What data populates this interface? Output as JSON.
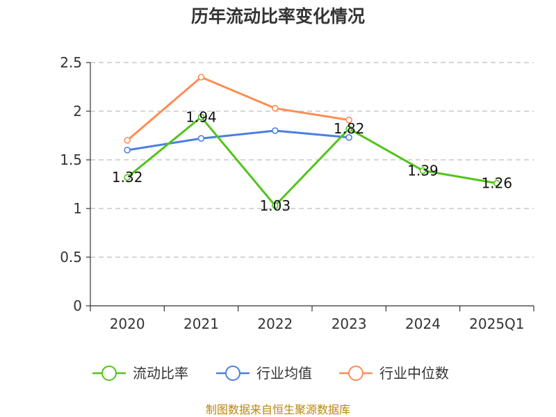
{
  "chart_data": {
    "type": "line",
    "title": "历年流动比率变化情况",
    "categories": [
      "2020",
      "2021",
      "2022",
      "2023",
      "2024",
      "2025Q1"
    ],
    "ylim": [
      0,
      2.5
    ],
    "yticks": [
      "0",
      "0.5",
      "1",
      "1.5",
      "2",
      "2.5"
    ],
    "grid": true,
    "legend_position": "bottom",
    "series": [
      {
        "name": "流动比率",
        "color": "#52c41a",
        "values": [
          1.32,
          1.94,
          1.03,
          1.82,
          1.39,
          1.26
        ],
        "labels": [
          "1.32",
          "1.94",
          "1.03",
          "1.82",
          "1.39",
          "1.26"
        ]
      },
      {
        "name": "行业均值",
        "color": "#4a7fde",
        "values": [
          1.6,
          1.72,
          1.8,
          1.73,
          null,
          null
        ]
      },
      {
        "name": "行业中位数",
        "color": "#ff8c55",
        "values": [
          1.7,
          2.35,
          2.03,
          1.91,
          null,
          null
        ]
      }
    ],
    "source": "制图数据来自恒生聚源数据库"
  }
}
